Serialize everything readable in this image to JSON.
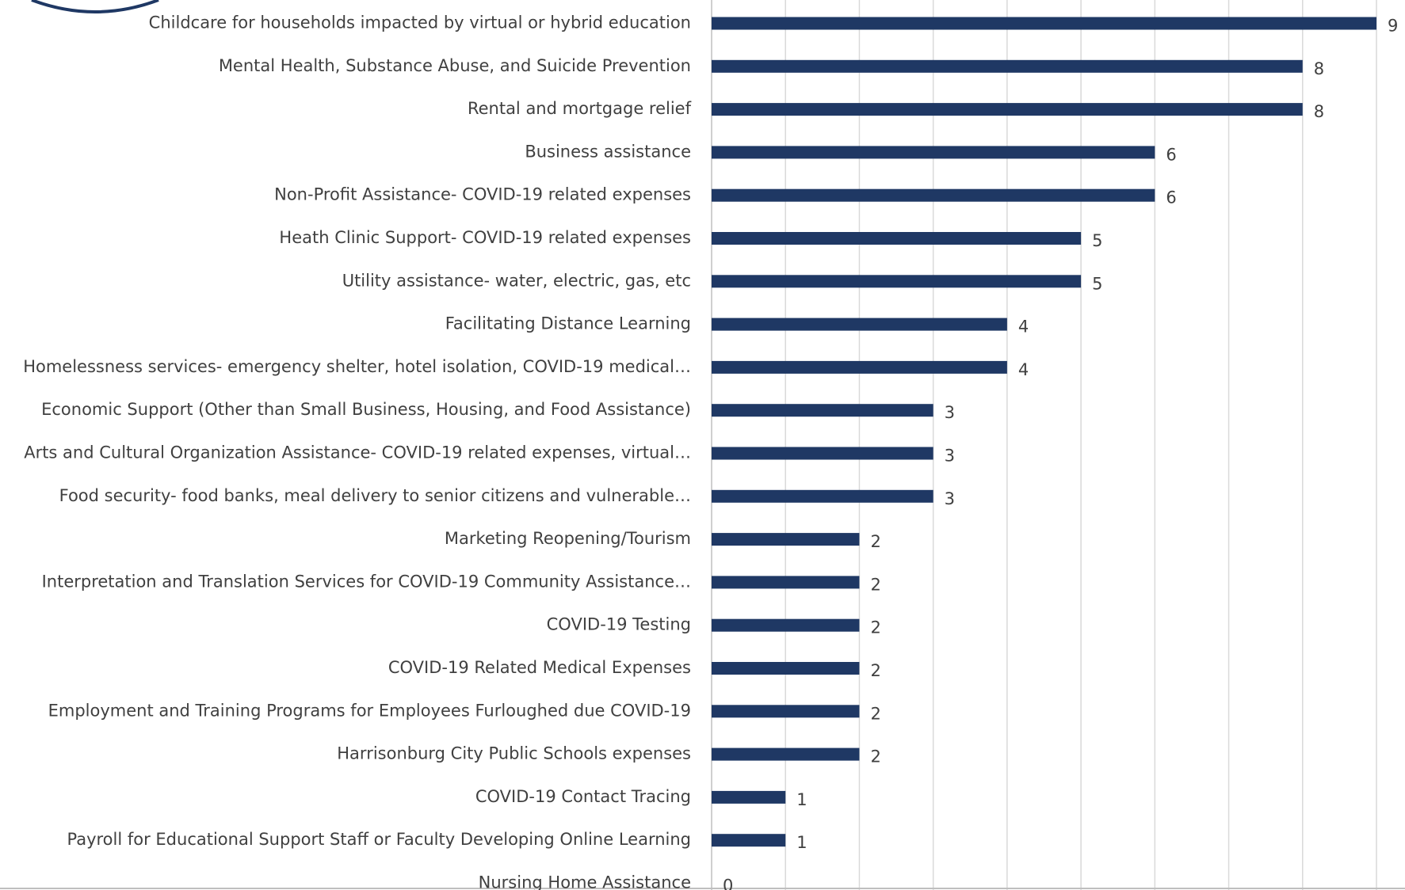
{
  "chart_data": {
    "type": "hbar",
    "categories": [
      "Childcare for households impacted by virtual or hybrid education",
      "Mental Health, Substance Abuse, and Suicide Prevention",
      "Rental and mortgage relief",
      "Business assistance",
      "Non-Profit Assistance- COVID-19 related expenses",
      "Heath Clinic Support- COVID-19 related expenses",
      "Utility assistance- water, electric, gas, etc",
      "Facilitating Distance Learning",
      "Homelessness services- emergency shelter, hotel isolation, COVID-19 medical…",
      "Economic Support (Other than Small Business, Housing, and Food Assistance)",
      "Arts and Cultural Organization Assistance- COVID-19 related expenses, virtual…",
      "Food security- food banks, meal delivery to senior citizens and vulnerable…",
      "Marketing Reopening/Tourism",
      "Interpretation and Translation Services for COVID-19 Community Assistance…",
      "COVID-19 Testing",
      "COVID-19 Related Medical Expenses",
      "Employment and Training Programs for Employees Furloughed due COVID-19",
      "Harrisonburg City Public Schools expenses",
      "COVID-19 Contact Tracing",
      "Payroll for Educational Support Staff or Faculty Developing Online Learning",
      "Nursing Home Assistance"
    ],
    "values": [
      9,
      8,
      8,
      6,
      6,
      5,
      5,
      4,
      4,
      3,
      3,
      3,
      2,
      2,
      2,
      2,
      2,
      2,
      1,
      1,
      0
    ],
    "color": "#1f3864",
    "xlim": [
      0,
      9
    ],
    "xticks": [
      0,
      1,
      2,
      3,
      4,
      5,
      6,
      7,
      8,
      9
    ],
    "grid": true
  }
}
